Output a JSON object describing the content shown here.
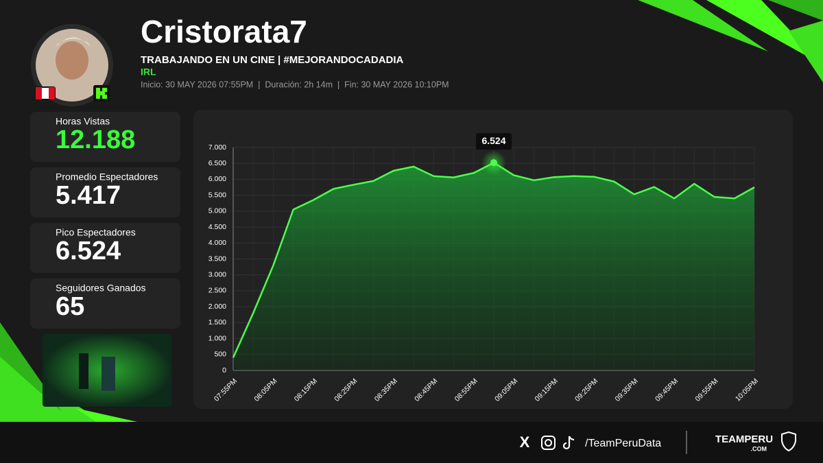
{
  "header": {
    "name": "Cristorata7",
    "stream_title": "TRABAJANDO EN UN CINE | #MEJORANDOCADADIA",
    "category": "IRL",
    "info": "Inicio: 30 MAY 2026 07:55PM  |  Duración: 2h 14m  |  Fin: 30 MAY 2026 10:10PM"
  },
  "stats": [
    {
      "label": "Horas Vistas",
      "value": "12.188"
    },
    {
      "label": "Promedio Espectadores",
      "value": "5.417"
    },
    {
      "label": "Pico Espectadores",
      "value": "6.524"
    },
    {
      "label": "Seguidores Ganados",
      "value": "65"
    }
  ],
  "chart_data": {
    "type": "line",
    "categories": [
      "07:55PM",
      null,
      "08:05PM",
      null,
      "08:15PM",
      null,
      "08:25PM",
      null,
      "08:35PM",
      null,
      "08:45PM",
      null,
      "08:55PM",
      null,
      "09:05PM",
      null,
      "09:15PM",
      null,
      "09:25PM",
      null,
      "09:35PM",
      null,
      "09:45PM",
      null,
      "09:55PM",
      null,
      "10:05PM"
    ],
    "series": [
      {
        "name": "Espectadores",
        "color": "#4dff4d",
        "values": [
          400,
          1800,
          3300,
          5050,
          5350,
          5700,
          5830,
          5950,
          6270,
          6400,
          6100,
          6060,
          6200,
          6524,
          6130,
          5970,
          6070,
          6100,
          6080,
          5930,
          5530,
          5760,
          5400,
          5860,
          5450,
          5400,
          5750
        ],
        "value_labels": [
          null,
          null,
          null,
          null,
          null,
          null,
          null,
          null,
          null,
          null,
          null,
          null,
          null,
          "6.524",
          null,
          null,
          null,
          null,
          null,
          null,
          null,
          null,
          null,
          null,
          null,
          null,
          null
        ]
      }
    ],
    "ylim": [
      0,
      7000
    ],
    "yticks": [
      0,
      500,
      {
        "value": 1000,
        "label": "1.000"
      },
      {
        "value": 1500,
        "label": "1.500"
      },
      {
        "value": 2000,
        "label": "2.000"
      },
      {
        "value": 2500,
        "label": "2.500"
      },
      {
        "value": 3000,
        "label": "3.000"
      },
      {
        "value": 3500,
        "label": "3.500"
      },
      {
        "value": 4000,
        "label": "4.000"
      },
      {
        "value": 4500,
        "label": "4.500"
      },
      {
        "value": 5000,
        "label": "5.000"
      },
      {
        "value": 5500,
        "label": "5.500"
      },
      {
        "value": 6000,
        "label": "6.000"
      },
      {
        "value": 6500,
        "label": "6.500"
      },
      {
        "value": 7000,
        "label": "7.000"
      }
    ],
    "grid": true
  },
  "footer": {
    "handle": "/TeamPeruData",
    "brand": "TEAMPERU",
    "brand_suffix": ".COM"
  }
}
